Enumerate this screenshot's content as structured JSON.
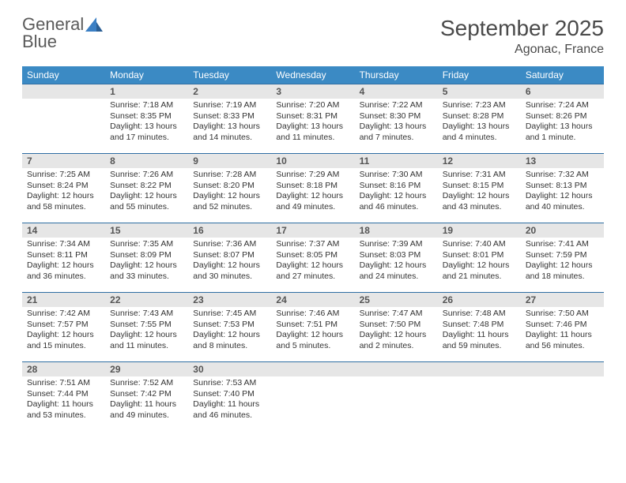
{
  "logo": {
    "line1": "General",
    "line2": "Blue"
  },
  "title": "September 2025",
  "location": "Agonac, France",
  "colors": {
    "header_bg": "#3b8ac4",
    "header_text": "#ffffff",
    "row_border": "#2f6ea3",
    "daynum_bg": "#e6e6e6",
    "logo_gray": "#5a5a5a",
    "logo_blue": "#3b7fc4"
  },
  "weekdays": [
    "Sunday",
    "Monday",
    "Tuesday",
    "Wednesday",
    "Thursday",
    "Friday",
    "Saturday"
  ],
  "weeks": [
    [
      null,
      {
        "n": "1",
        "sr": "7:18 AM",
        "ss": "8:35 PM",
        "dl": "13 hours and 17 minutes."
      },
      {
        "n": "2",
        "sr": "7:19 AM",
        "ss": "8:33 PM",
        "dl": "13 hours and 14 minutes."
      },
      {
        "n": "3",
        "sr": "7:20 AM",
        "ss": "8:31 PM",
        "dl": "13 hours and 11 minutes."
      },
      {
        "n": "4",
        "sr": "7:22 AM",
        "ss": "8:30 PM",
        "dl": "13 hours and 7 minutes."
      },
      {
        "n": "5",
        "sr": "7:23 AM",
        "ss": "8:28 PM",
        "dl": "13 hours and 4 minutes."
      },
      {
        "n": "6",
        "sr": "7:24 AM",
        "ss": "8:26 PM",
        "dl": "13 hours and 1 minute."
      }
    ],
    [
      {
        "n": "7",
        "sr": "7:25 AM",
        "ss": "8:24 PM",
        "dl": "12 hours and 58 minutes."
      },
      {
        "n": "8",
        "sr": "7:26 AM",
        "ss": "8:22 PM",
        "dl": "12 hours and 55 minutes."
      },
      {
        "n": "9",
        "sr": "7:28 AM",
        "ss": "8:20 PM",
        "dl": "12 hours and 52 minutes."
      },
      {
        "n": "10",
        "sr": "7:29 AM",
        "ss": "8:18 PM",
        "dl": "12 hours and 49 minutes."
      },
      {
        "n": "11",
        "sr": "7:30 AM",
        "ss": "8:16 PM",
        "dl": "12 hours and 46 minutes."
      },
      {
        "n": "12",
        "sr": "7:31 AM",
        "ss": "8:15 PM",
        "dl": "12 hours and 43 minutes."
      },
      {
        "n": "13",
        "sr": "7:32 AM",
        "ss": "8:13 PM",
        "dl": "12 hours and 40 minutes."
      }
    ],
    [
      {
        "n": "14",
        "sr": "7:34 AM",
        "ss": "8:11 PM",
        "dl": "12 hours and 36 minutes."
      },
      {
        "n": "15",
        "sr": "7:35 AM",
        "ss": "8:09 PM",
        "dl": "12 hours and 33 minutes."
      },
      {
        "n": "16",
        "sr": "7:36 AM",
        "ss": "8:07 PM",
        "dl": "12 hours and 30 minutes."
      },
      {
        "n": "17",
        "sr": "7:37 AM",
        "ss": "8:05 PM",
        "dl": "12 hours and 27 minutes."
      },
      {
        "n": "18",
        "sr": "7:39 AM",
        "ss": "8:03 PM",
        "dl": "12 hours and 24 minutes."
      },
      {
        "n": "19",
        "sr": "7:40 AM",
        "ss": "8:01 PM",
        "dl": "12 hours and 21 minutes."
      },
      {
        "n": "20",
        "sr": "7:41 AM",
        "ss": "7:59 PM",
        "dl": "12 hours and 18 minutes."
      }
    ],
    [
      {
        "n": "21",
        "sr": "7:42 AM",
        "ss": "7:57 PM",
        "dl": "12 hours and 15 minutes."
      },
      {
        "n": "22",
        "sr": "7:43 AM",
        "ss": "7:55 PM",
        "dl": "12 hours and 11 minutes."
      },
      {
        "n": "23",
        "sr": "7:45 AM",
        "ss": "7:53 PM",
        "dl": "12 hours and 8 minutes."
      },
      {
        "n": "24",
        "sr": "7:46 AM",
        "ss": "7:51 PM",
        "dl": "12 hours and 5 minutes."
      },
      {
        "n": "25",
        "sr": "7:47 AM",
        "ss": "7:50 PM",
        "dl": "12 hours and 2 minutes."
      },
      {
        "n": "26",
        "sr": "7:48 AM",
        "ss": "7:48 PM",
        "dl": "11 hours and 59 minutes."
      },
      {
        "n": "27",
        "sr": "7:50 AM",
        "ss": "7:46 PM",
        "dl": "11 hours and 56 minutes."
      }
    ],
    [
      {
        "n": "28",
        "sr": "7:51 AM",
        "ss": "7:44 PM",
        "dl": "11 hours and 53 minutes."
      },
      {
        "n": "29",
        "sr": "7:52 AM",
        "ss": "7:42 PM",
        "dl": "11 hours and 49 minutes."
      },
      {
        "n": "30",
        "sr": "7:53 AM",
        "ss": "7:40 PM",
        "dl": "11 hours and 46 minutes."
      },
      null,
      null,
      null,
      null
    ]
  ],
  "labels": {
    "sunrise": "Sunrise:",
    "sunset": "Sunset:",
    "daylight": "Daylight:"
  }
}
